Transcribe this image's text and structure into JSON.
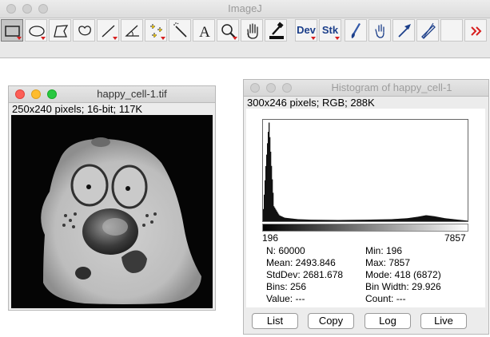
{
  "main_window": {
    "title": "ImageJ",
    "tools": [
      {
        "name": "rectangle-tool",
        "icon": "rectangle-icon",
        "selected": true
      },
      {
        "name": "oval-tool",
        "icon": "oval-icon"
      },
      {
        "name": "polygon-tool",
        "icon": "polygon-icon"
      },
      {
        "name": "freehand-tool",
        "icon": "freehand-icon"
      },
      {
        "name": "line-tool",
        "icon": "line-icon"
      },
      {
        "name": "angle-tool",
        "icon": "angle-icon"
      },
      {
        "name": "multipoint-tool",
        "icon": "multipoint-icon"
      },
      {
        "name": "wand-tool",
        "icon": "wand-icon"
      },
      {
        "name": "text-tool",
        "icon": "text-icon",
        "label": "A"
      },
      {
        "name": "zoom-tool",
        "icon": "magnifier-icon"
      },
      {
        "name": "scroll-tool",
        "icon": "hand-icon"
      },
      {
        "name": "color-picker-tool",
        "icon": "dropper-icon"
      },
      {
        "name": "dev-tool",
        "label": "Dev"
      },
      {
        "name": "stk-tool",
        "label": "Stk"
      },
      {
        "name": "brush-tool",
        "icon": "brush-icon"
      },
      {
        "name": "flood-tool",
        "icon": "flood-icon"
      },
      {
        "name": "arrow-tool",
        "icon": "arrow-icon"
      },
      {
        "name": "pencil-tool",
        "icon": "pencil-icon"
      },
      {
        "name": "more-tools",
        "icon": "double-chevron-right-icon"
      }
    ]
  },
  "image_window": {
    "title": "happy_cell-1.tif",
    "info": "250x240 pixels; 16-bit; 117K"
  },
  "histogram_window": {
    "title": "Histogram of happy_cell-1",
    "info": "300x246 pixels; RGB; 288K",
    "axis_min": "196",
    "axis_max": "7857",
    "stats": {
      "n": "N: 60000",
      "mean": "Mean: 2493.846",
      "stddev": "StdDev: 2681.678",
      "bins": "Bins: 256",
      "value": "Value: ---",
      "min": "Min: 196",
      "max": "Max: 7857",
      "mode": "Mode: 418 (6872)",
      "bin_width": "Bin Width: 29.926",
      "count": "Count: ---"
    },
    "buttons": {
      "list": "List",
      "copy": "Copy",
      "log": "Log",
      "live": "Live"
    }
  },
  "chart_data": {
    "type": "bar",
    "title": "",
    "xlabel": "",
    "ylabel": "",
    "xlim": [
      196,
      7857
    ],
    "bins": 256,
    "y_is_relative": true,
    "x": [
      196,
      300,
      418,
      500,
      600,
      800,
      1000,
      1500,
      2000,
      3000,
      4000,
      5000,
      5600,
      6000,
      6300,
      6600,
      7000,
      7500,
      7857
    ],
    "values": [
      0.05,
      0.55,
      1.0,
      0.6,
      0.15,
      0.06,
      0.035,
      0.02,
      0.015,
      0.012,
      0.015,
      0.02,
      0.03,
      0.045,
      0.06,
      0.05,
      0.03,
      0.015,
      0.005
    ]
  }
}
